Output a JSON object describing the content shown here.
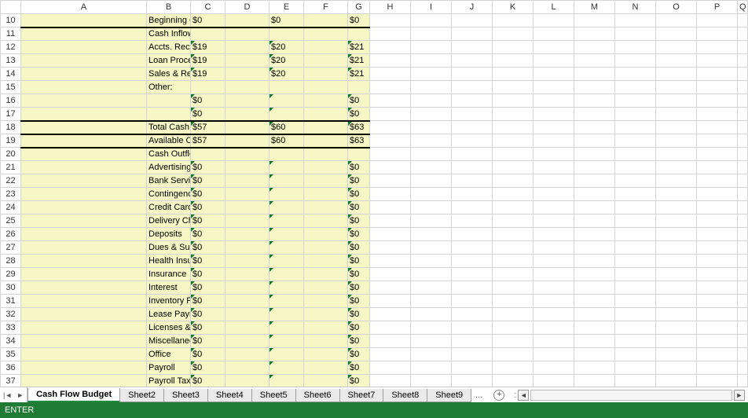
{
  "colors": {
    "highlight_bg": "#f7f7c6",
    "grid_border": "#d4d4d4",
    "triangle": "#0a7a2a",
    "status_bg": "#1f7a34",
    "active_tab_underline": "#1f8a3b"
  },
  "columns": [
    "A",
    "B",
    "C",
    "D",
    "E",
    "F",
    "G",
    "H",
    "I",
    "J",
    "K",
    "L",
    "M",
    "N",
    "O",
    "P",
    "Q"
  ],
  "row_start": 10,
  "rows": [
    {
      "n": 10,
      "label": "Beginning Cash Balance",
      "indent": 0,
      "c": "$0",
      "e": "$0",
      "g": "$0",
      "bb": true
    },
    {
      "n": 11,
      "label": "Cash Inflows (Income):",
      "indent": 0
    },
    {
      "n": 12,
      "label": "Accts. Rec. Collections",
      "indent": 1,
      "c": "$19",
      "e": "$20",
      "g": "$21",
      "tri": [
        "c",
        "e",
        "g"
      ]
    },
    {
      "n": 13,
      "label": "Loan Proceeds",
      "indent": 1,
      "c": "$19",
      "e": "$20",
      "g": "$21",
      "tri": [
        "c",
        "e",
        "g"
      ]
    },
    {
      "n": 14,
      "label": "Sales & Receipts",
      "indent": 1,
      "c": "$19",
      "e": "$20",
      "g": "$21",
      "tri": [
        "c",
        "e",
        "g"
      ]
    },
    {
      "n": 15,
      "label": "Other:",
      "indent": 1
    },
    {
      "n": 16,
      "label": "",
      "indent": 0,
      "c": "$0",
      "g": "$0",
      "tri": [
        "c",
        "e",
        "g"
      ]
    },
    {
      "n": 17,
      "label": "",
      "indent": 0,
      "c": "$0",
      "g": "$0",
      "tri": [
        "c",
        "e",
        "g"
      ]
    },
    {
      "n": 18,
      "label": "Total Cash Inflows",
      "indent": 2,
      "c": "$57",
      "e": "$60",
      "g": "$63",
      "bt": true,
      "tri": [
        "c",
        "e",
        "g"
      ]
    },
    {
      "n": 19,
      "label": "Available Cash Balance",
      "indent": 0,
      "c": "$57",
      "e": "$60",
      "g": "$63",
      "bt": true,
      "bb": true
    },
    {
      "n": 20,
      "label": "Cash Outflows (Expenses):",
      "indent": 0
    },
    {
      "n": 21,
      "label": "Advertising",
      "indent": 1,
      "c": "$0",
      "g": "$0",
      "tri": [
        "c",
        "e",
        "g"
      ]
    },
    {
      "n": 22,
      "label": "Bank Service Charges",
      "indent": 1,
      "c": "$0",
      "g": "$0",
      "tri": [
        "c",
        "e",
        "g"
      ]
    },
    {
      "n": 23,
      "label": "Contingencies",
      "indent": 1,
      "c": "$0",
      "g": "$0",
      "tri": [
        "c",
        "e",
        "g"
      ]
    },
    {
      "n": 24,
      "label": "Credit Card Fees",
      "indent": 1,
      "c": "$0",
      "g": "$0",
      "tri": [
        "c",
        "e",
        "g"
      ]
    },
    {
      "n": 25,
      "label": "Delivery Charges",
      "indent": 1,
      "c": "$0",
      "g": "$0",
      "tri": [
        "c",
        "e",
        "g"
      ]
    },
    {
      "n": 26,
      "label": "Deposits",
      "indent": 1,
      "c": "$0",
      "g": "$0",
      "tri": [
        "c",
        "e",
        "g"
      ]
    },
    {
      "n": 27,
      "label": "Dues & Subscriptions",
      "indent": 1,
      "c": "$0",
      "g": "$0",
      "tri": [
        "c",
        "e",
        "g"
      ]
    },
    {
      "n": 28,
      "label": "Health Insurance",
      "indent": 1,
      "c": "$0",
      "g": "$0",
      "tri": [
        "c",
        "e",
        "g"
      ]
    },
    {
      "n": 29,
      "label": "Insurance",
      "indent": 1,
      "c": "$0",
      "g": "$0",
      "tri": [
        "c",
        "e",
        "g"
      ]
    },
    {
      "n": 30,
      "label": "Interest",
      "indent": 1,
      "c": "$0",
      "g": "$0",
      "tri": [
        "c",
        "e",
        "g"
      ]
    },
    {
      "n": 31,
      "label": "Inventory Purchases",
      "indent": 1,
      "c": "$0",
      "g": "$0",
      "tri": [
        "c",
        "e",
        "g"
      ]
    },
    {
      "n": 32,
      "label": "Lease Payments",
      "indent": 1,
      "c": "$0",
      "g": "$0",
      "tri": [
        "c",
        "e",
        "g"
      ]
    },
    {
      "n": 33,
      "label": "Licenses & Permits",
      "indent": 1,
      "c": "$0",
      "g": "$0",
      "tri": [
        "c",
        "e",
        "g"
      ]
    },
    {
      "n": 34,
      "label": "Miscellaneous",
      "indent": 1,
      "c": "$0",
      "g": "$0",
      "tri": [
        "c",
        "e",
        "g"
      ]
    },
    {
      "n": 35,
      "label": "Office",
      "indent": 1,
      "c": "$0",
      "g": "$0",
      "tri": [
        "c",
        "e",
        "g"
      ]
    },
    {
      "n": 36,
      "label": "Payroll",
      "indent": 1,
      "c": "$0",
      "g": "$0",
      "tri": [
        "c",
        "e",
        "g"
      ]
    },
    {
      "n": 37,
      "label": "Payroll Taxes",
      "indent": 1,
      "c": "$0",
      "g": "$0",
      "tri": [
        "c",
        "e",
        "g"
      ],
      "cut": true
    }
  ],
  "tabs": {
    "items": [
      "Cash Flow Budget",
      "Sheet2",
      "Sheet3",
      "Sheet4",
      "Sheet5",
      "Sheet6",
      "Sheet7",
      "Sheet8",
      "Sheet9"
    ],
    "active_index": 0,
    "more": "...",
    "add_icon": "+"
  },
  "nav": {
    "first": "|◄",
    "prev": "►"
  },
  "scroll": {
    "left": "◄",
    "right": "►",
    "sep": ":"
  },
  "status": {
    "mode": "ENTER"
  }
}
